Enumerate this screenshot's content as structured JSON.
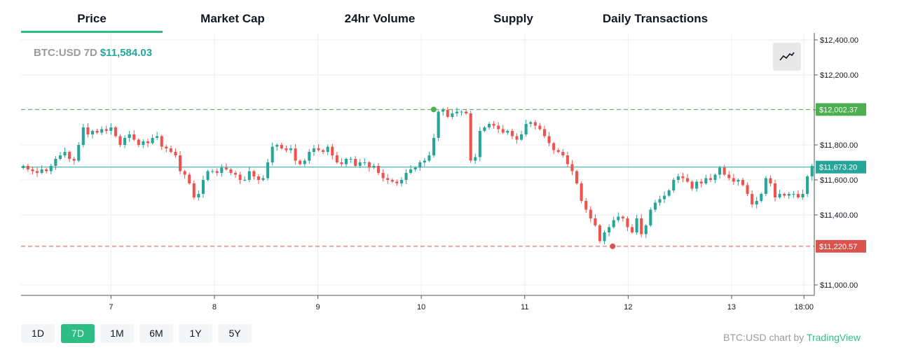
{
  "tabs": [
    {
      "label": "Price",
      "active": true
    },
    {
      "label": "Market Cap",
      "active": false
    },
    {
      "label": "24hr Volume",
      "active": false
    },
    {
      "label": "Supply",
      "active": false
    },
    {
      "label": "Daily Transactions",
      "active": false
    }
  ],
  "legend": {
    "symbol": "BTC:USD 7D",
    "price": "$11,584.03"
  },
  "range_buttons": [
    {
      "label": "1D",
      "active": false
    },
    {
      "label": "7D",
      "active": true
    },
    {
      "label": "1M",
      "active": false
    },
    {
      "label": "6M",
      "active": false
    },
    {
      "label": "1Y",
      "active": false
    },
    {
      "label": "5Y",
      "active": false
    }
  ],
  "attribution": {
    "text": "BTC:USD chart by ",
    "link": "TradingView"
  },
  "colors": {
    "up": "#26a69a",
    "down": "#ef5350",
    "accent": "#2ebd85",
    "high": "#4caf50",
    "low": "#d9534f"
  },
  "icons": {
    "chart_style": "line-chart-icon"
  },
  "chart_data": {
    "type": "candlestick",
    "yticks": [
      "$12,400.00",
      "$12,200.00",
      "$12,000.00",
      "$11,800.00",
      "$11,600.00",
      "$11,400.00",
      "$11,000.00"
    ],
    "ytick_values": [
      12400,
      12200,
      12000,
      11800,
      11600,
      11400,
      11000
    ],
    "ylim": [
      10940,
      12440
    ],
    "xticks": [
      "7",
      "8",
      "9",
      "10",
      "11",
      "12",
      "13",
      "18:00"
    ],
    "xtick_positions": [
      7,
      8,
      9,
      10,
      11,
      12,
      13,
      13.7
    ],
    "xlim": [
      6.13,
      13.8
    ],
    "current_price": {
      "label": "$11,673.20",
      "value": 11673.2
    },
    "high": {
      "label": "$12,002.37",
      "value": 12002.37,
      "at": 10.12
    },
    "low": {
      "label": "$11,220.57",
      "value": 11220.57,
      "at": 11.85
    },
    "closes": [
      11680,
      11660,
      11650,
      11640,
      11660,
      11650,
      11680,
      11720,
      11740,
      11760,
      11720,
      11710,
      11800,
      11900,
      11860,
      11880,
      11870,
      11890,
      11880,
      11900,
      11850,
      11800,
      11840,
      11860,
      11830,
      11800,
      11820,
      11810,
      11840,
      11850,
      11790,
      11780,
      11760,
      11740,
      11650,
      11630,
      11580,
      11500,
      11520,
      11600,
      11650,
      11650,
      11640,
      11670,
      11660,
      11640,
      11630,
      11600,
      11600,
      11650,
      11620,
      11600,
      11610,
      11700,
      11790,
      11800,
      11780,
      11770,
      11780,
      11710,
      11690,
      11710,
      11760,
      11780,
      11770,
      11760,
      11790,
      11740,
      11700,
      11690,
      11720,
      11720,
      11680,
      11700,
      11700,
      11670,
      11680,
      11640,
      11610,
      11600,
      11590,
      11580,
      11600,
      11640,
      11660,
      11670,
      11700,
      11710,
      11740,
      11840,
      11990,
      12000,
      11960,
      11980,
      11990,
      11990,
      11980,
      11710,
      11730,
      11880,
      11900,
      11920,
      11910,
      11890,
      11870,
      11880,
      11850,
      11830,
      11860,
      11920,
      11930,
      11910,
      11890,
      11850,
      11810,
      11770,
      11760,
      11740,
      11690,
      11650,
      11580,
      11480,
      11430,
      11380,
      11340,
      11250,
      11300,
      11330,
      11370,
      11390,
      11380,
      11330,
      11300,
      11380,
      11290,
      11340,
      11430,
      11470,
      11490,
      11510,
      11540,
      11600,
      11620,
      11610,
      11590,
      11550,
      11590,
      11580,
      11610,
      11600,
      11630,
      11670,
      11630,
      11610,
      11590,
      11600,
      11570,
      11520,
      11460,
      11480,
      11520,
      11610,
      11580,
      11500,
      11520,
      11510,
      11520,
      11520,
      11500,
      11520,
      11620,
      11680
    ]
  }
}
